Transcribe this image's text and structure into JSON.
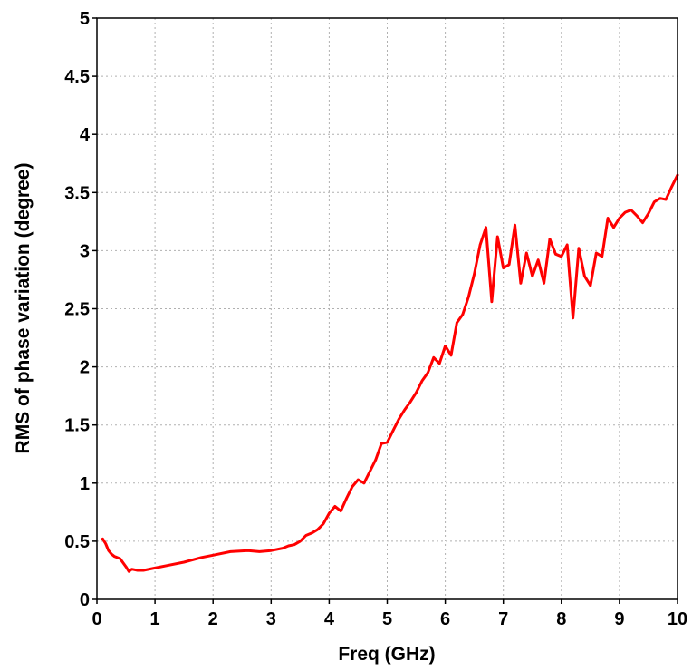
{
  "chart_data": {
    "type": "line",
    "xlabel": "Freq (GHz)",
    "ylabel": "RMS of phase variation (degree)",
    "xlim": [
      0,
      10
    ],
    "ylim": [
      0,
      5
    ],
    "x_ticks": [
      "0",
      "1",
      "2",
      "3",
      "4",
      "5",
      "6",
      "7",
      "8",
      "9",
      "10"
    ],
    "y_ticks": [
      "0",
      "0.5",
      "1",
      "1.5",
      "2",
      "2.5",
      "3",
      "3.5",
      "4",
      "4.5",
      "5"
    ],
    "grid": true,
    "series": [
      {
        "color": "#ff0000",
        "x": [
          0.1,
          0.15,
          0.2,
          0.25,
          0.3,
          0.4,
          0.5,
          0.55,
          0.6,
          0.7,
          0.8,
          1.0,
          1.2,
          1.5,
          1.8,
          2.0,
          2.3,
          2.6,
          2.8,
          3.0,
          3.2,
          3.3,
          3.4,
          3.5,
          3.6,
          3.7,
          3.8,
          3.9,
          4.0,
          4.1,
          4.2,
          4.3,
          4.4,
          4.5,
          4.6,
          4.7,
          4.8,
          4.9,
          5.0,
          5.1,
          5.2,
          5.3,
          5.4,
          5.5,
          5.6,
          5.7,
          5.8,
          5.9,
          6.0,
          6.1,
          6.2,
          6.3,
          6.4,
          6.5,
          6.6,
          6.7,
          6.8,
          6.9,
          7.0,
          7.1,
          7.2,
          7.3,
          7.4,
          7.5,
          7.6,
          7.7,
          7.8,
          7.9,
          8.0,
          8.1,
          8.2,
          8.3,
          8.4,
          8.5,
          8.6,
          8.7,
          8.8,
          8.9,
          9.0,
          9.1,
          9.2,
          9.3,
          9.4,
          9.5,
          9.6,
          9.7,
          9.8,
          9.9,
          10.0
        ],
        "y": [
          0.52,
          0.48,
          0.42,
          0.39,
          0.37,
          0.35,
          0.28,
          0.24,
          0.26,
          0.25,
          0.25,
          0.27,
          0.29,
          0.32,
          0.36,
          0.38,
          0.41,
          0.42,
          0.41,
          0.42,
          0.44,
          0.46,
          0.47,
          0.5,
          0.55,
          0.57,
          0.6,
          0.65,
          0.74,
          0.8,
          0.76,
          0.87,
          0.97,
          1.03,
          1.0,
          1.1,
          1.2,
          1.34,
          1.35,
          1.45,
          1.55,
          1.63,
          1.7,
          1.78,
          1.88,
          1.95,
          2.08,
          2.03,
          2.18,
          2.1,
          2.38,
          2.45,
          2.6,
          2.8,
          3.05,
          3.2,
          2.56,
          3.12,
          2.85,
          2.88,
          3.22,
          2.72,
          2.98,
          2.78,
          2.92,
          2.72,
          3.1,
          2.97,
          2.95,
          3.05,
          2.42,
          3.02,
          2.78,
          2.7,
          2.98,
          2.95,
          3.28,
          3.2,
          3.28,
          3.33,
          3.35,
          3.3,
          3.24,
          3.32,
          3.42,
          3.45,
          3.44,
          3.55,
          3.65
        ]
      }
    ]
  }
}
